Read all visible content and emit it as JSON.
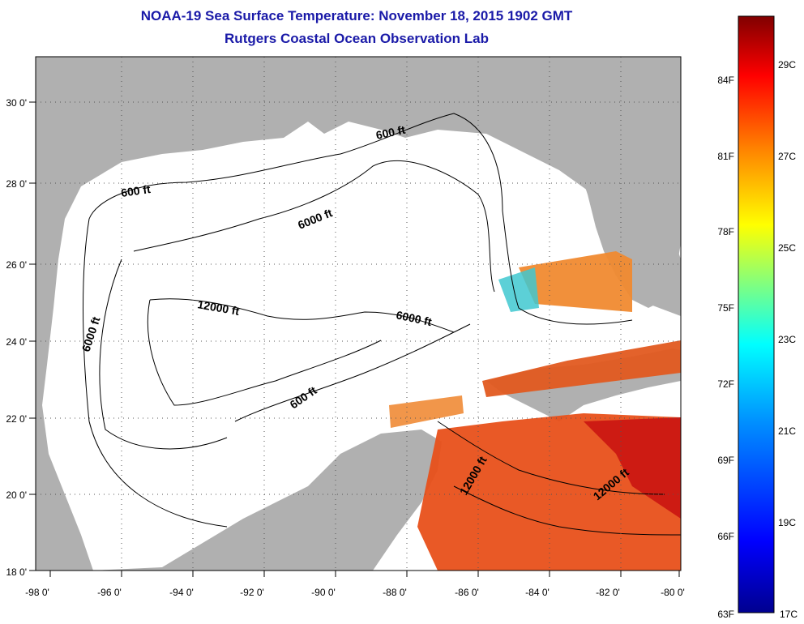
{
  "title": "NOAA-19 Sea Surface Temperature:  November 18, 2015 1902 GMT",
  "subtitle": "Rutgers Coastal Ocean Observation Lab",
  "map": {
    "lon_ticks": [
      "-98 0'",
      "-96 0'",
      "-94 0'",
      "-92 0'",
      "-90 0'",
      "-88 0'",
      "-86 0'",
      "-84 0'",
      "-82 0'",
      "-80 0'"
    ],
    "lat_ticks": [
      "18 0'",
      "20 0'",
      "22 0'",
      "24 0'",
      "26 0'",
      "28 0'",
      "30 0'"
    ],
    "lon_range": [
      -98,
      -80
    ],
    "lat_range": [
      18,
      31
    ],
    "contour_labels": [
      "600 ft",
      "600 ft",
      "6000 ft",
      "6000 ft",
      "6000 ft",
      "12000 ft",
      "600 ft",
      "12000 ft",
      "12000 ft"
    ],
    "colors": {
      "land": "#b0b0b0",
      "ocean": "#ffffff",
      "grid": "#555555"
    }
  },
  "colorbar": {
    "celsius_labels": [
      "29C",
      "27C",
      "25C",
      "23C",
      "21C",
      "19C",
      "17C"
    ],
    "fahrenheit_labels": [
      "84F",
      "81F",
      "78F",
      "75F",
      "72F",
      "69F",
      "66F",
      "63F"
    ],
    "colors": [
      "#00008f",
      "#0000ff",
      "#0080ff",
      "#00ffff",
      "#80ff80",
      "#ffff00",
      "#ff8000",
      "#ff0000",
      "#800000"
    ]
  }
}
